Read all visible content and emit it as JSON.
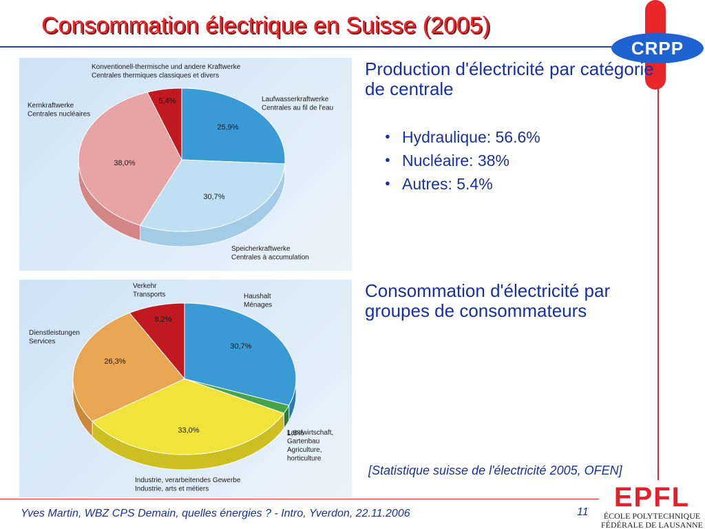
{
  "slide": {
    "title": "Consommation électrique en Suisse (2005)",
    "logo_text": "CRPP",
    "heading1": "Production d'électricité par catégorie de centrale",
    "bullets": [
      "Hydraulique: 56.6%",
      "Nucléaire: 38%",
      "Autres: 5.4%"
    ],
    "heading2": "Consommation d'électricité par groupes de consommateurs",
    "source": "[Statistique suisse de l'électricité 2005, OFEN]",
    "footer": "Yves Martin, WBZ CPS Demain, quelles énergies ? - Intro, Yverdon, 22.11.2006",
    "page_number": "11",
    "epfl_logo_text": "EPFL",
    "epfl_line1": "ÉCOLE POLYTECHNIQUE",
    "epfl_line2": "FÉDÉRALE DE LAUSANNE"
  },
  "chart_data": [
    {
      "type": "pie",
      "values": [
        25.9,
        30.7,
        38.0,
        5.4
      ],
      "value_labels": [
        "25,9%",
        "30,7%",
        "38,0%",
        "5,4%"
      ],
      "labels": [
        [
          "Laufwasserkraftwerke",
          "Centrales au fil de l'eau"
        ],
        [
          "Speicherkraftwerke",
          "Centrales à accumulation"
        ],
        [
          "Kernkraftwerke",
          "Centrales nucléaires"
        ],
        [
          "Konventionell-thermische und andere Kraftwerke",
          "Centrales thermiques classiques et divers"
        ]
      ],
      "colors": [
        "#3a9ad4",
        "#bfe0f3",
        "#e8a3a4",
        "#c0191f"
      ],
      "side_colors": [
        "#2a7bb0",
        "#a3cbe6",
        "#d48586",
        "#8f1217"
      ]
    },
    {
      "type": "pie",
      "values": [
        30.7,
        1.8,
        33.0,
        26.3,
        8.2
      ],
      "value_labels": [
        "30,7%",
        "1,8%",
        "33,0%",
        "26,3%",
        "8,2%"
      ],
      "labels": [
        [
          "Haushalt",
          "Ménages"
        ],
        [
          "Landwirtschaft,",
          "Gartenbau",
          "Agriculture,",
          "horticulture"
        ],
        [
          "Industrie, verarbeitendes Gewerbe",
          "Industrie, arts et métiers"
        ],
        [
          "Dienstleistungen",
          "Services"
        ],
        [
          "Verkehr",
          "Transports"
        ]
      ],
      "colors": [
        "#3a9ad4",
        "#45a349",
        "#f2e33a",
        "#e8a653",
        "#c0191f"
      ],
      "side_colors": [
        "#2a7bb0",
        "#2f7a33",
        "#cdbf22",
        "#c9883a",
        "#8f1217"
      ]
    }
  ]
}
